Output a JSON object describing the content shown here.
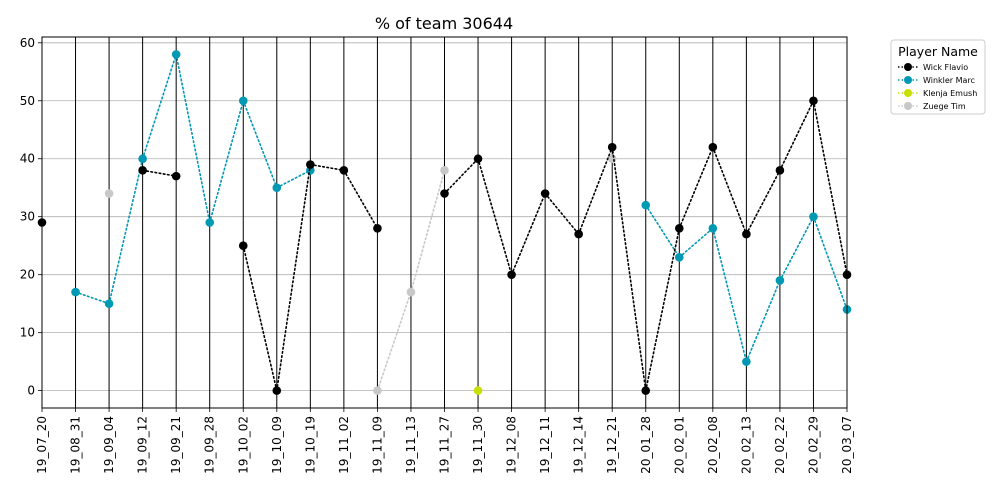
{
  "chart_data": {
    "type": "line",
    "title": "% of team 30644",
    "xlabel": "",
    "ylabel": "",
    "ylim": [
      -3,
      61
    ],
    "yticks": [
      0,
      10,
      20,
      30,
      40,
      50,
      60
    ],
    "categories": [
      "19_07_20",
      "19_08_31",
      "19_09_04",
      "19_09_12",
      "19_09_21",
      "19_09_28",
      "19_10_02",
      "19_10_09",
      "19_10_19",
      "19_11_02",
      "19_11_09",
      "19_11_13",
      "19_11_27",
      "19_11_30",
      "19_12_08",
      "19_12_11",
      "19_12_14",
      "19_12_21",
      "20_01_28",
      "20_02_01",
      "20_02_08",
      "20_02_13",
      "20_02_22",
      "20_02_29",
      "20_03_07"
    ],
    "grid": "horizontal",
    "legend": {
      "title": "Player Name",
      "position": "outside right"
    },
    "series": [
      {
        "name": "Wick Flavio",
        "color": "#000000",
        "values": [
          29,
          null,
          null,
          38,
          37,
          null,
          25,
          0,
          39,
          38,
          28,
          null,
          34,
          40,
          20,
          34,
          27,
          42,
          0,
          28,
          42,
          27,
          38,
          50,
          20
        ]
      },
      {
        "name": "Winkler Marc",
        "color": "#0099b4",
        "values": [
          null,
          17,
          15,
          40,
          58,
          29,
          50,
          35,
          38,
          null,
          null,
          null,
          null,
          null,
          null,
          null,
          null,
          null,
          32,
          23,
          28,
          5,
          19,
          30,
          14
        ]
      },
      {
        "name": "Klenja Emush",
        "color": "#c8e000",
        "values": [
          null,
          null,
          null,
          null,
          null,
          null,
          null,
          null,
          null,
          null,
          null,
          null,
          null,
          0,
          null,
          null,
          null,
          null,
          null,
          null,
          null,
          null,
          null,
          null,
          null
        ]
      },
      {
        "name": "Zuege Tim",
        "color": "#c8c8c8",
        "values": [
          null,
          null,
          34,
          null,
          null,
          null,
          null,
          null,
          null,
          null,
          0,
          17,
          38,
          null,
          null,
          null,
          null,
          40,
          null,
          null,
          null,
          null,
          null,
          null,
          null
        ]
      }
    ]
  }
}
